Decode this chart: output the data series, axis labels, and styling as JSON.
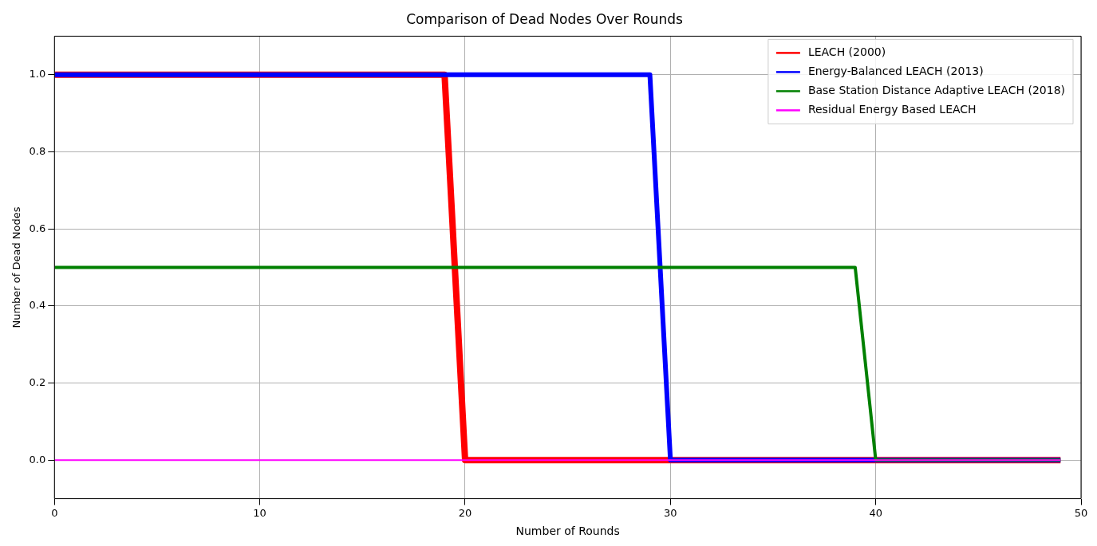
{
  "chart_data": {
    "type": "line",
    "title": "Comparison of Dead Nodes Over Rounds",
    "xlabel": "Number of Rounds",
    "ylabel": "Number of Dead Nodes",
    "xlim": [
      0,
      50
    ],
    "xticks": [
      0,
      10,
      20,
      30,
      40,
      50
    ],
    "ylim": [
      -0.1,
      1.1
    ],
    "yticks": [
      {
        "value": 0,
        "label": "0.0"
      },
      0.2,
      0.4,
      0.6,
      0.8,
      {
        "value": 1,
        "label": "1.0"
      }
    ],
    "grid": true,
    "legend": "top right",
    "marker": "none",
    "line_style": "solid",
    "series": [
      {
        "name": "LEACH (2000)",
        "color": "#ff0000",
        "x": [
          0,
          19,
          20,
          49
        ],
        "values": [
          1,
          1,
          0,
          0
        ]
      },
      {
        "name": "Energy-Balanced LEACH (2013)",
        "color": "#0000ff",
        "x": [
          0,
          29,
          30,
          49
        ],
        "values": [
          1,
          1,
          0,
          0
        ]
      },
      {
        "name": "Base Station Distance Adaptive LEACH (2018)",
        "color": "#008000",
        "x": [
          0,
          39,
          40,
          49
        ],
        "values": [
          0.5,
          0.5,
          0,
          0
        ]
      },
      {
        "name": "Residual Energy Based LEACH",
        "color": "#ff00ff",
        "x": [
          0,
          49
        ],
        "values": [
          0,
          0
        ]
      }
    ]
  }
}
